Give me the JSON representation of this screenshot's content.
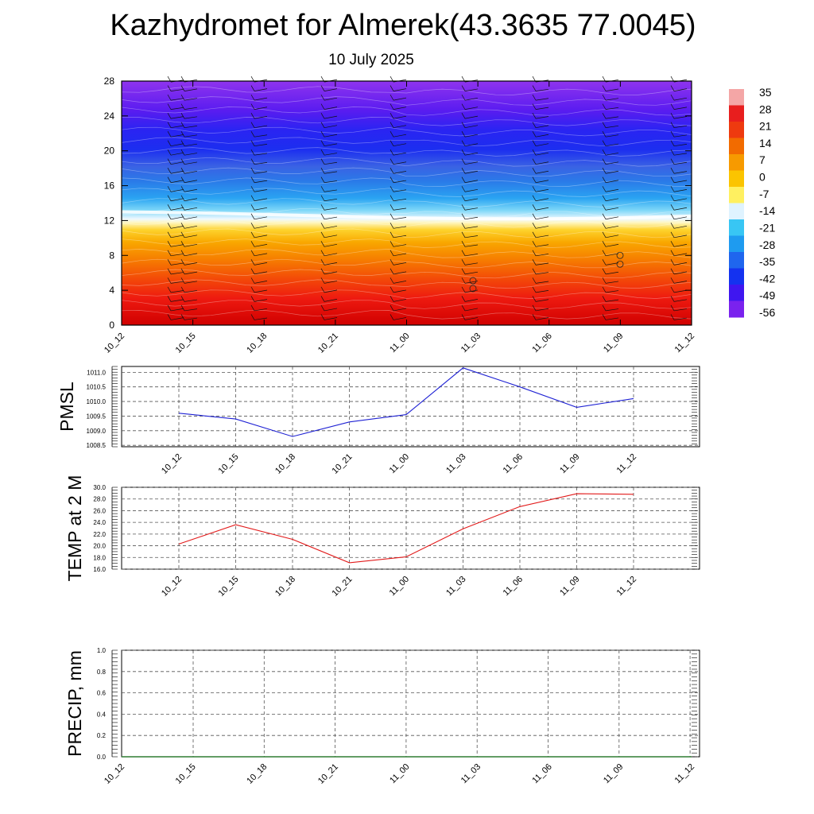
{
  "header": {
    "title": "Kazhydromet for Almerek(43.3635 77.0045)",
    "date": "10 July 2025"
  },
  "colorbar": {
    "labels": [
      "35",
      "28",
      "21",
      "14",
      "7",
      "0",
      "-7",
      "-14",
      "-21",
      "-28",
      "-35",
      "-42",
      "-49",
      "-56"
    ],
    "colors": [
      "#f4a6a6",
      "#e81e1e",
      "#ee3a0f",
      "#f26b00",
      "#f79a00",
      "#fbc400",
      "#fff060",
      "#dff3ff",
      "#38c6f4",
      "#1e9bf0",
      "#1f66ee",
      "#1432f0",
      "#3f16f0",
      "#7a22ee"
    ]
  },
  "chart_data": [
    {
      "type": "heatmap",
      "title": "",
      "xlabel": "",
      "ylabel": "",
      "x": [
        "10_12",
        "10_15",
        "10_18",
        "10_21",
        "11_00",
        "11_03",
        "11_06",
        "11_09",
        "11_12"
      ],
      "y_ticks": [
        "0",
        "4",
        "8",
        "12",
        "16",
        "20",
        "24",
        "28"
      ],
      "ylim": [
        0,
        28
      ],
      "freezing_level": [
        13,
        12.9,
        12.7,
        12.5,
        12.3,
        12.2,
        12.2,
        12.3,
        12.5
      ],
      "grid": false,
      "wind_barbs": true
    },
    {
      "type": "line",
      "ylabel": "PMSL",
      "categories": [
        "10_12",
        "10_15",
        "10_18",
        "10_21",
        "11_00",
        "11_03",
        "11_06",
        "11_09",
        "11_12"
      ],
      "values": [
        1009.6,
        1009.4,
        1008.8,
        1009.3,
        1009.55,
        1011.15,
        1010.5,
        1009.8,
        1010.1
      ],
      "ylim": [
        1008.45,
        1011.2
      ],
      "y_ticks": [
        "1008.5",
        "1009.0",
        "1009.5",
        "1010.0",
        "1010.5",
        "1011.0"
      ],
      "y_tick_values": [
        1008.5,
        1009.0,
        1009.5,
        1010.0,
        1010.5,
        1011.0
      ],
      "color": "#1f22d4",
      "grid": true
    },
    {
      "type": "line",
      "ylabel": "TEMP at 2 M",
      "categories": [
        "10_12",
        "10_15",
        "10_18",
        "10_21",
        "11_00",
        "11_03",
        "11_06",
        "11_09",
        "11_12"
      ],
      "values": [
        20.3,
        23.6,
        21.1,
        17.1,
        18.1,
        22.9,
        26.7,
        28.9,
        28.8
      ],
      "ylim": [
        16,
        30
      ],
      "y_ticks": [
        "16.0",
        "18.0",
        "20.0",
        "22.0",
        "24.0",
        "26.0",
        "28.0",
        "30.0"
      ],
      "y_tick_values": [
        16,
        18,
        20,
        22,
        24,
        26,
        28,
        30
      ],
      "color": "#e21a1a",
      "grid": true
    },
    {
      "type": "bar",
      "ylabel": "PRECIP, mm",
      "categories": [
        "10_12",
        "10_15",
        "10_18",
        "10_21",
        "11_00",
        "11_03",
        "11_06",
        "11_09",
        "11_12"
      ],
      "values": [
        0,
        0,
        0,
        0,
        0,
        0,
        0,
        0,
        0
      ],
      "ylim": [
        0,
        1
      ],
      "y_ticks": [
        "0.0",
        "0.2",
        "0.4",
        "0.6",
        "0.8",
        "1.0"
      ],
      "y_tick_values": [
        0,
        0.2,
        0.4,
        0.6,
        0.8,
        1.0
      ],
      "color": "#2e7d32",
      "grid": true
    }
  ]
}
